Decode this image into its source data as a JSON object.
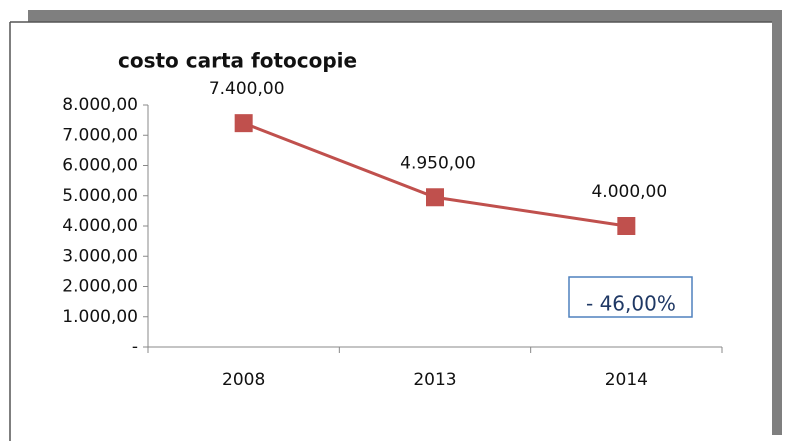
{
  "chart_data": {
    "type": "line",
    "title": "costo carta fotocopie",
    "categories": [
      "2008",
      "2013",
      "2014"
    ],
    "values": [
      7400,
      4950,
      4000
    ],
    "value_labels": [
      "7.400,00",
      "4.950,00",
      "4.000,00"
    ],
    "color": "#c0504d",
    "ylim": [
      0,
      8000
    ],
    "yticks": [
      {
        "value": 0,
        "label": "-"
      },
      {
        "value": 1000,
        "label": "1.000,00"
      },
      {
        "value": 2000,
        "label": "2.000,00"
      },
      {
        "value": 3000,
        "label": "3.000,00"
      },
      {
        "value": 4000,
        "label": "4.000,00"
      },
      {
        "value": 5000,
        "label": "5.000,00"
      },
      {
        "value": 6000,
        "label": "6.000,00"
      },
      {
        "value": 7000,
        "label": "7.000,00"
      },
      {
        "value": 8000,
        "label": "8.000,00"
      }
    ],
    "grid": false,
    "annotation": "- 46,00%"
  }
}
